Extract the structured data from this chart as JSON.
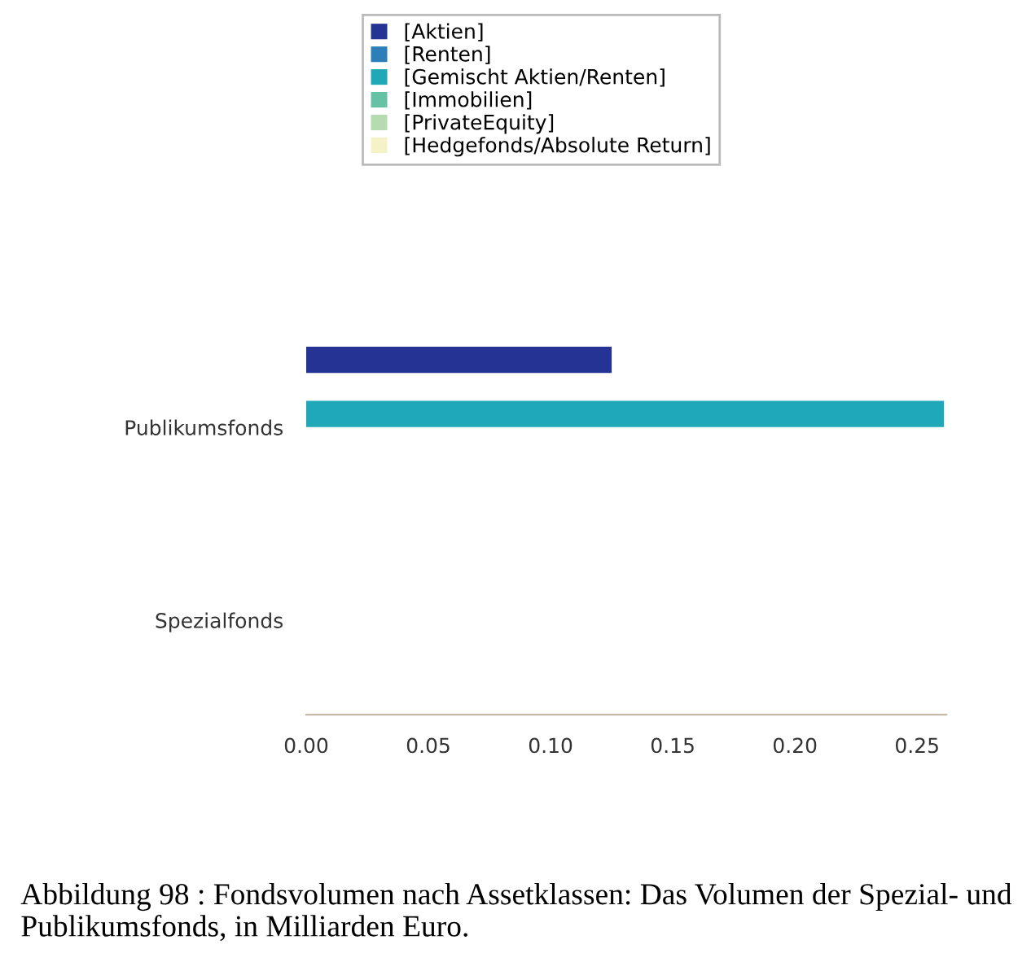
{
  "chart_data": {
    "type": "bar",
    "orientation": "horizontal",
    "categories": [
      "Publikumsfonds",
      "Spezialfonds"
    ],
    "series": [
      {
        "name": "[Aktien]",
        "color": "#253494",
        "values": [
          0.125,
          0
        ]
      },
      {
        "name": "[Renten]",
        "color": "#2c7fb8",
        "values": [
          0,
          0
        ]
      },
      {
        "name": "[Gemischt Aktien/Renten]",
        "color": "#1fa8b8",
        "values": [
          0.261,
          0
        ]
      },
      {
        "name": "[Immobilien]",
        "color": "#66c2a4",
        "values": [
          0,
          0
        ]
      },
      {
        "name": "[PrivateEquity]",
        "color": "#b4dcb0",
        "values": [
          0,
          0
        ]
      },
      {
        "name": "[Hedgefonds/Absolute Return]",
        "color": "#f6f2c8",
        "values": [
          0,
          0
        ]
      }
    ],
    "xlim": [
      0,
      0.262
    ],
    "xticks": [
      {
        "value": 0,
        "label": "0.00"
      },
      {
        "value": 0.05,
        "label": "0.05"
      },
      {
        "value": 0.1,
        "label": "0.10"
      },
      {
        "value": 0.15,
        "label": "0.15"
      },
      {
        "value": 0.2,
        "label": "0.20"
      },
      {
        "value": 0.25,
        "label": "0.25"
      }
    ],
    "legend": "top",
    "annotations": [
      "Abbildung 98 : Fondsvolumen nach Assetklassen: Das Volumen der Spezial- und Publikumsfonds, in Milliarden Euro."
    ]
  }
}
